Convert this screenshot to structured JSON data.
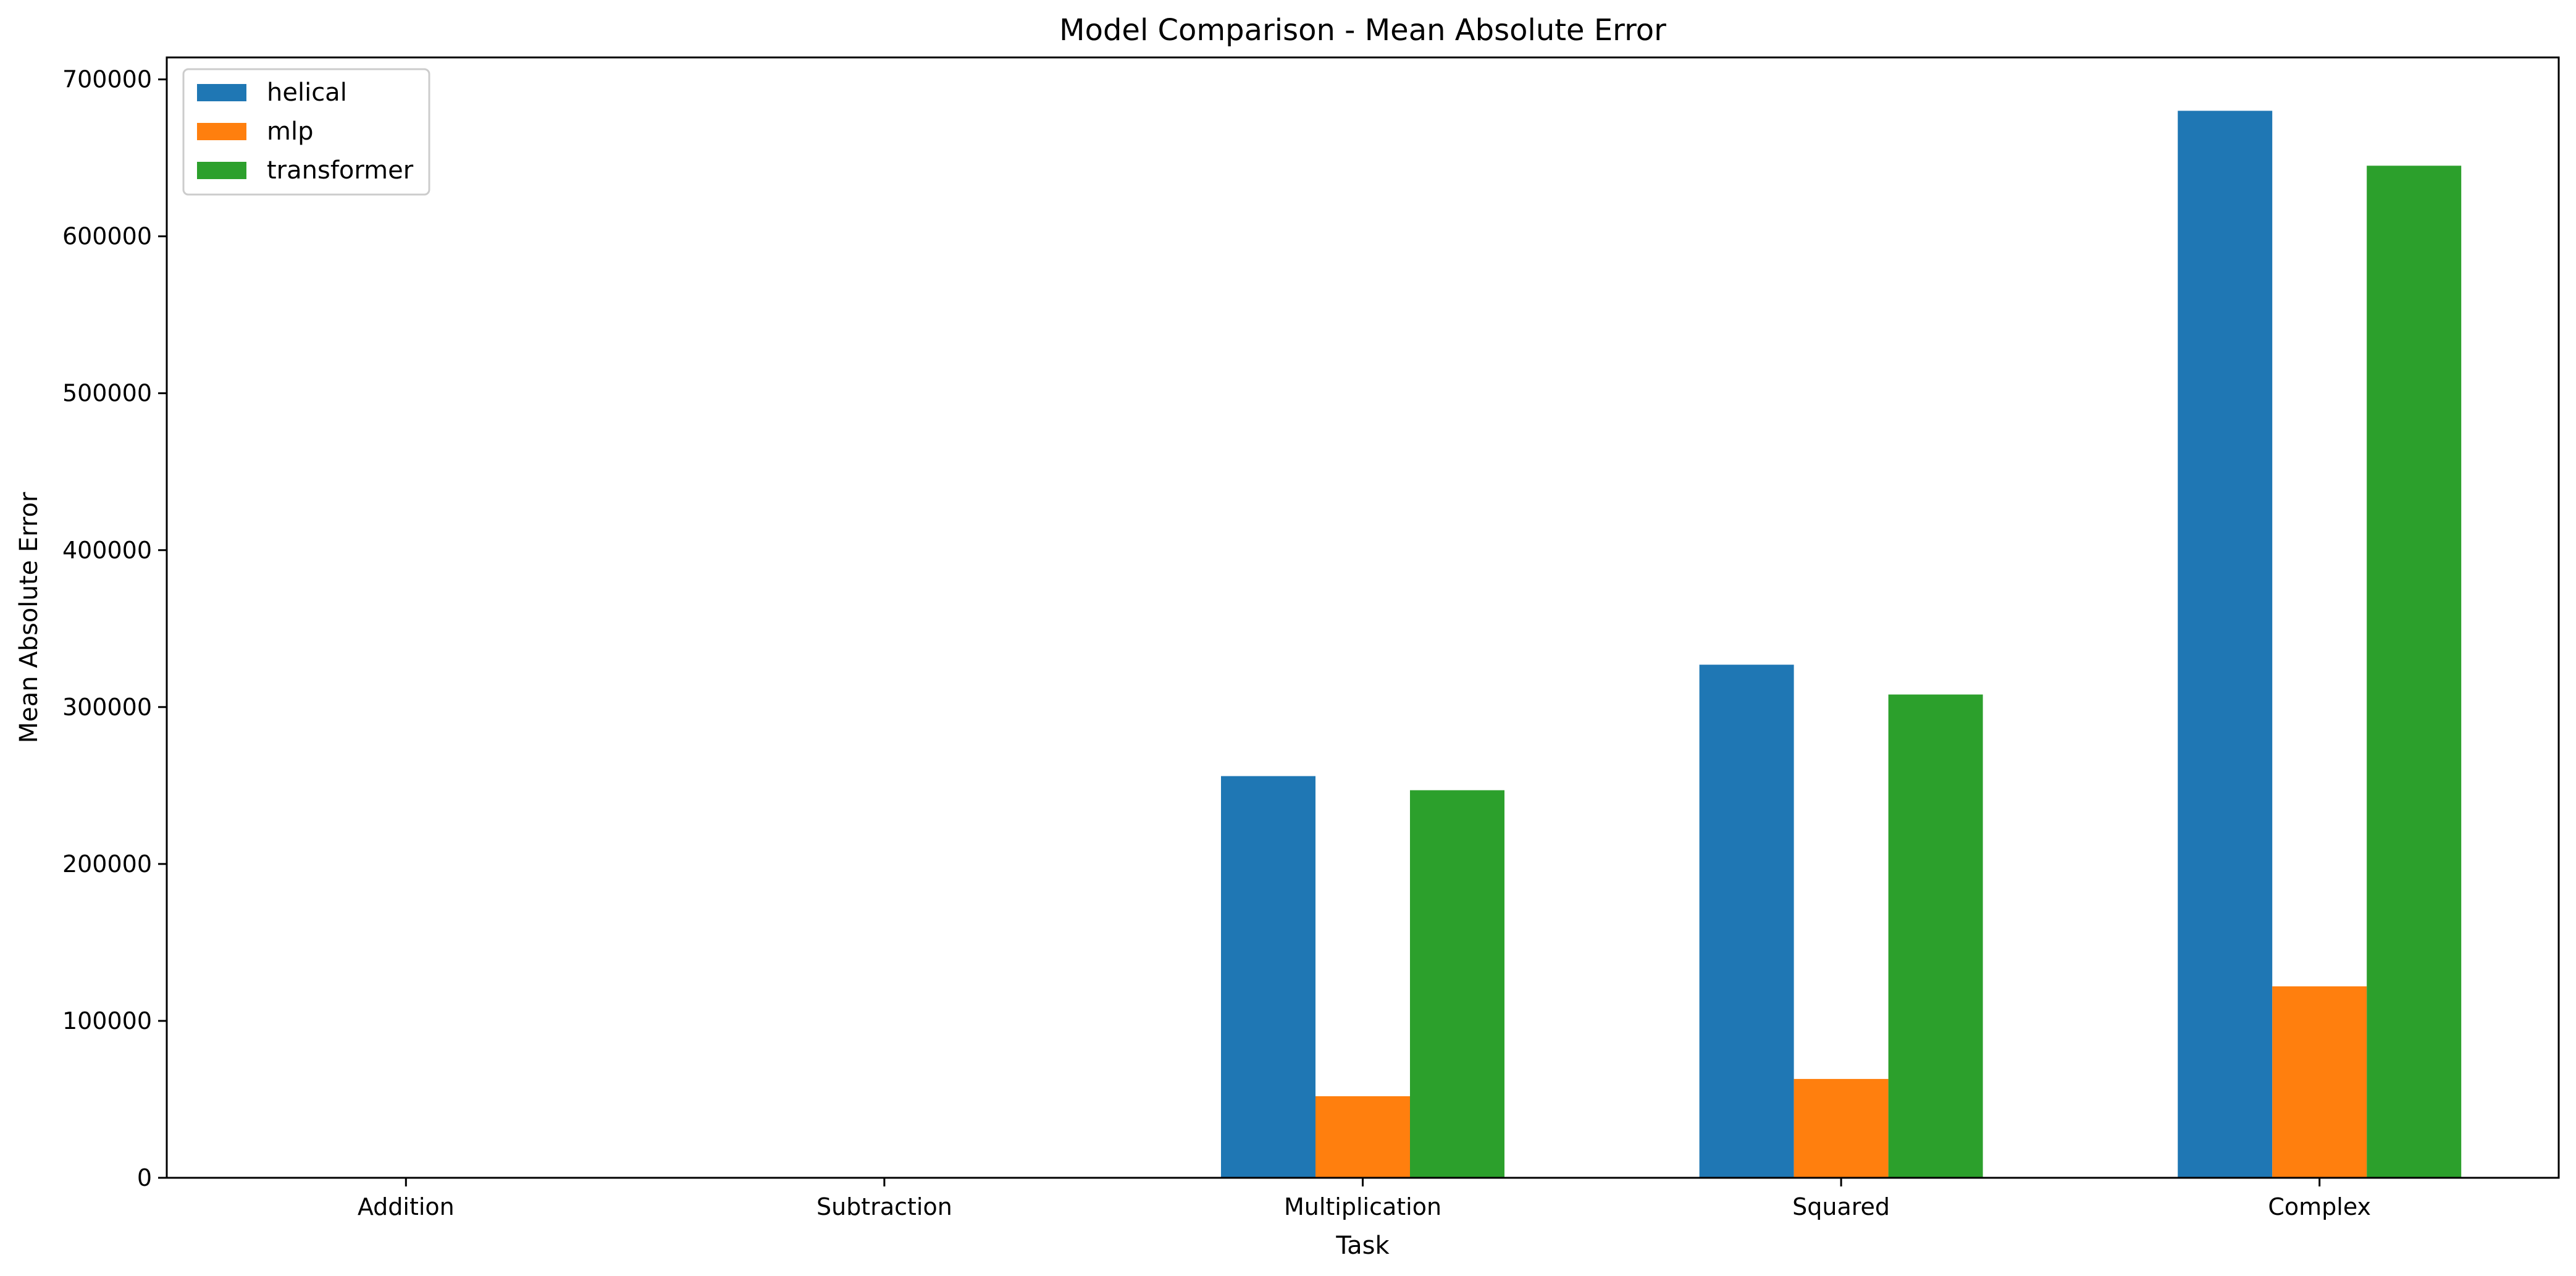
{
  "chart_data": {
    "type": "bar",
    "title": "Model Comparison - Mean Absolute Error",
    "xlabel": "Task",
    "ylabel": "Mean Absolute Error",
    "categories": [
      "Addition",
      "Subtraction",
      "Multiplication",
      "Squared",
      "Complex"
    ],
    "series": [
      {
        "name": "helical",
        "color": "#1f77b4",
        "values": [
          250,
          20,
          256000,
          327000,
          680000
        ]
      },
      {
        "name": "mlp",
        "color": "#ff7f0e",
        "values": [
          40,
          10,
          52000,
          63000,
          122000
        ]
      },
      {
        "name": "transformer",
        "color": "#2ca02c",
        "values": [
          60,
          15,
          247000,
          308000,
          645000
        ]
      }
    ],
    "ylim": [
      0,
      714000
    ],
    "yticks": [
      0,
      100000,
      200000,
      300000,
      400000,
      500000,
      600000,
      700000
    ],
    "ytick_labels": [
      "0",
      "100000",
      "200000",
      "300000",
      "400000",
      "500000",
      "600000",
      "700000"
    ],
    "grid": false,
    "legend_position": "top-left"
  }
}
